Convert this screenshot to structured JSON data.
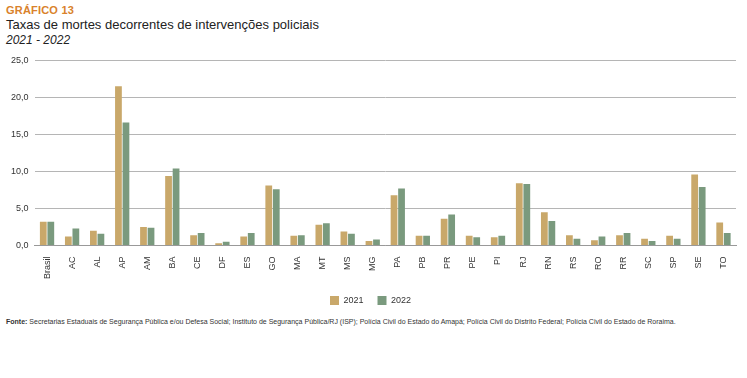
{
  "chart_data": {
    "type": "bar",
    "chart_number": "GRÁFICO 13",
    "title": "Taxas de mortes decorrentes de intervenções policiais",
    "subtitle": "2021 - 2022",
    "source_label": "Fonte:",
    "source_text": "Secretarias Estaduais de Segurança Pública e/ou Defesa Social; Instituto de Segurança Pública/RJ (ISP); Polícia Civil do Estado do Amapá; Polícia Civil do Distrito Federal; Polícia Civil do Estado de Roraima.",
    "categories": [
      "Brasil",
      "AC",
      "AL",
      "AP",
      "AM",
      "BA",
      "CE",
      "DF",
      "ES",
      "GO",
      "MA",
      "MT",
      "MS",
      "MG",
      "PA",
      "PB",
      "PR",
      "PE",
      "PI",
      "RJ",
      "RN",
      "RS",
      "RO",
      "RR",
      "SC",
      "SP",
      "SE",
      "TO"
    ],
    "series": [
      {
        "name": "2021",
        "color": "#c9a86a",
        "values": [
          3.2,
          1.2,
          2.0,
          21.5,
          2.5,
          9.4,
          1.4,
          0.3,
          1.2,
          8.1,
          1.3,
          2.8,
          1.9,
          0.6,
          6.8,
          1.3,
          3.6,
          1.3,
          1.1,
          8.4,
          4.5,
          1.4,
          0.7,
          1.4,
          0.9,
          1.3,
          9.6,
          3.1
        ]
      },
      {
        "name": "2022",
        "color": "#7a9a7e",
        "values": [
          3.2,
          2.3,
          1.6,
          16.6,
          2.4,
          10.4,
          1.7,
          0.5,
          1.7,
          7.6,
          1.4,
          3.0,
          1.6,
          0.8,
          7.7,
          1.3,
          4.2,
          1.1,
          1.3,
          8.3,
          3.3,
          0.9,
          1.2,
          1.7,
          0.6,
          0.9,
          7.9,
          1.7
        ]
      }
    ],
    "ylim": [
      0,
      25
    ],
    "yticks": [
      {
        "value": 0,
        "label": "0,0"
      },
      {
        "value": 5,
        "label": "5,0"
      },
      {
        "value": 10,
        "label": "10,0"
      },
      {
        "value": 15,
        "label": "15,0"
      },
      {
        "value": 20,
        "label": "20,0"
      },
      {
        "value": 25,
        "label": "25,0"
      }
    ],
    "grid": true,
    "legend": "bottom"
  }
}
